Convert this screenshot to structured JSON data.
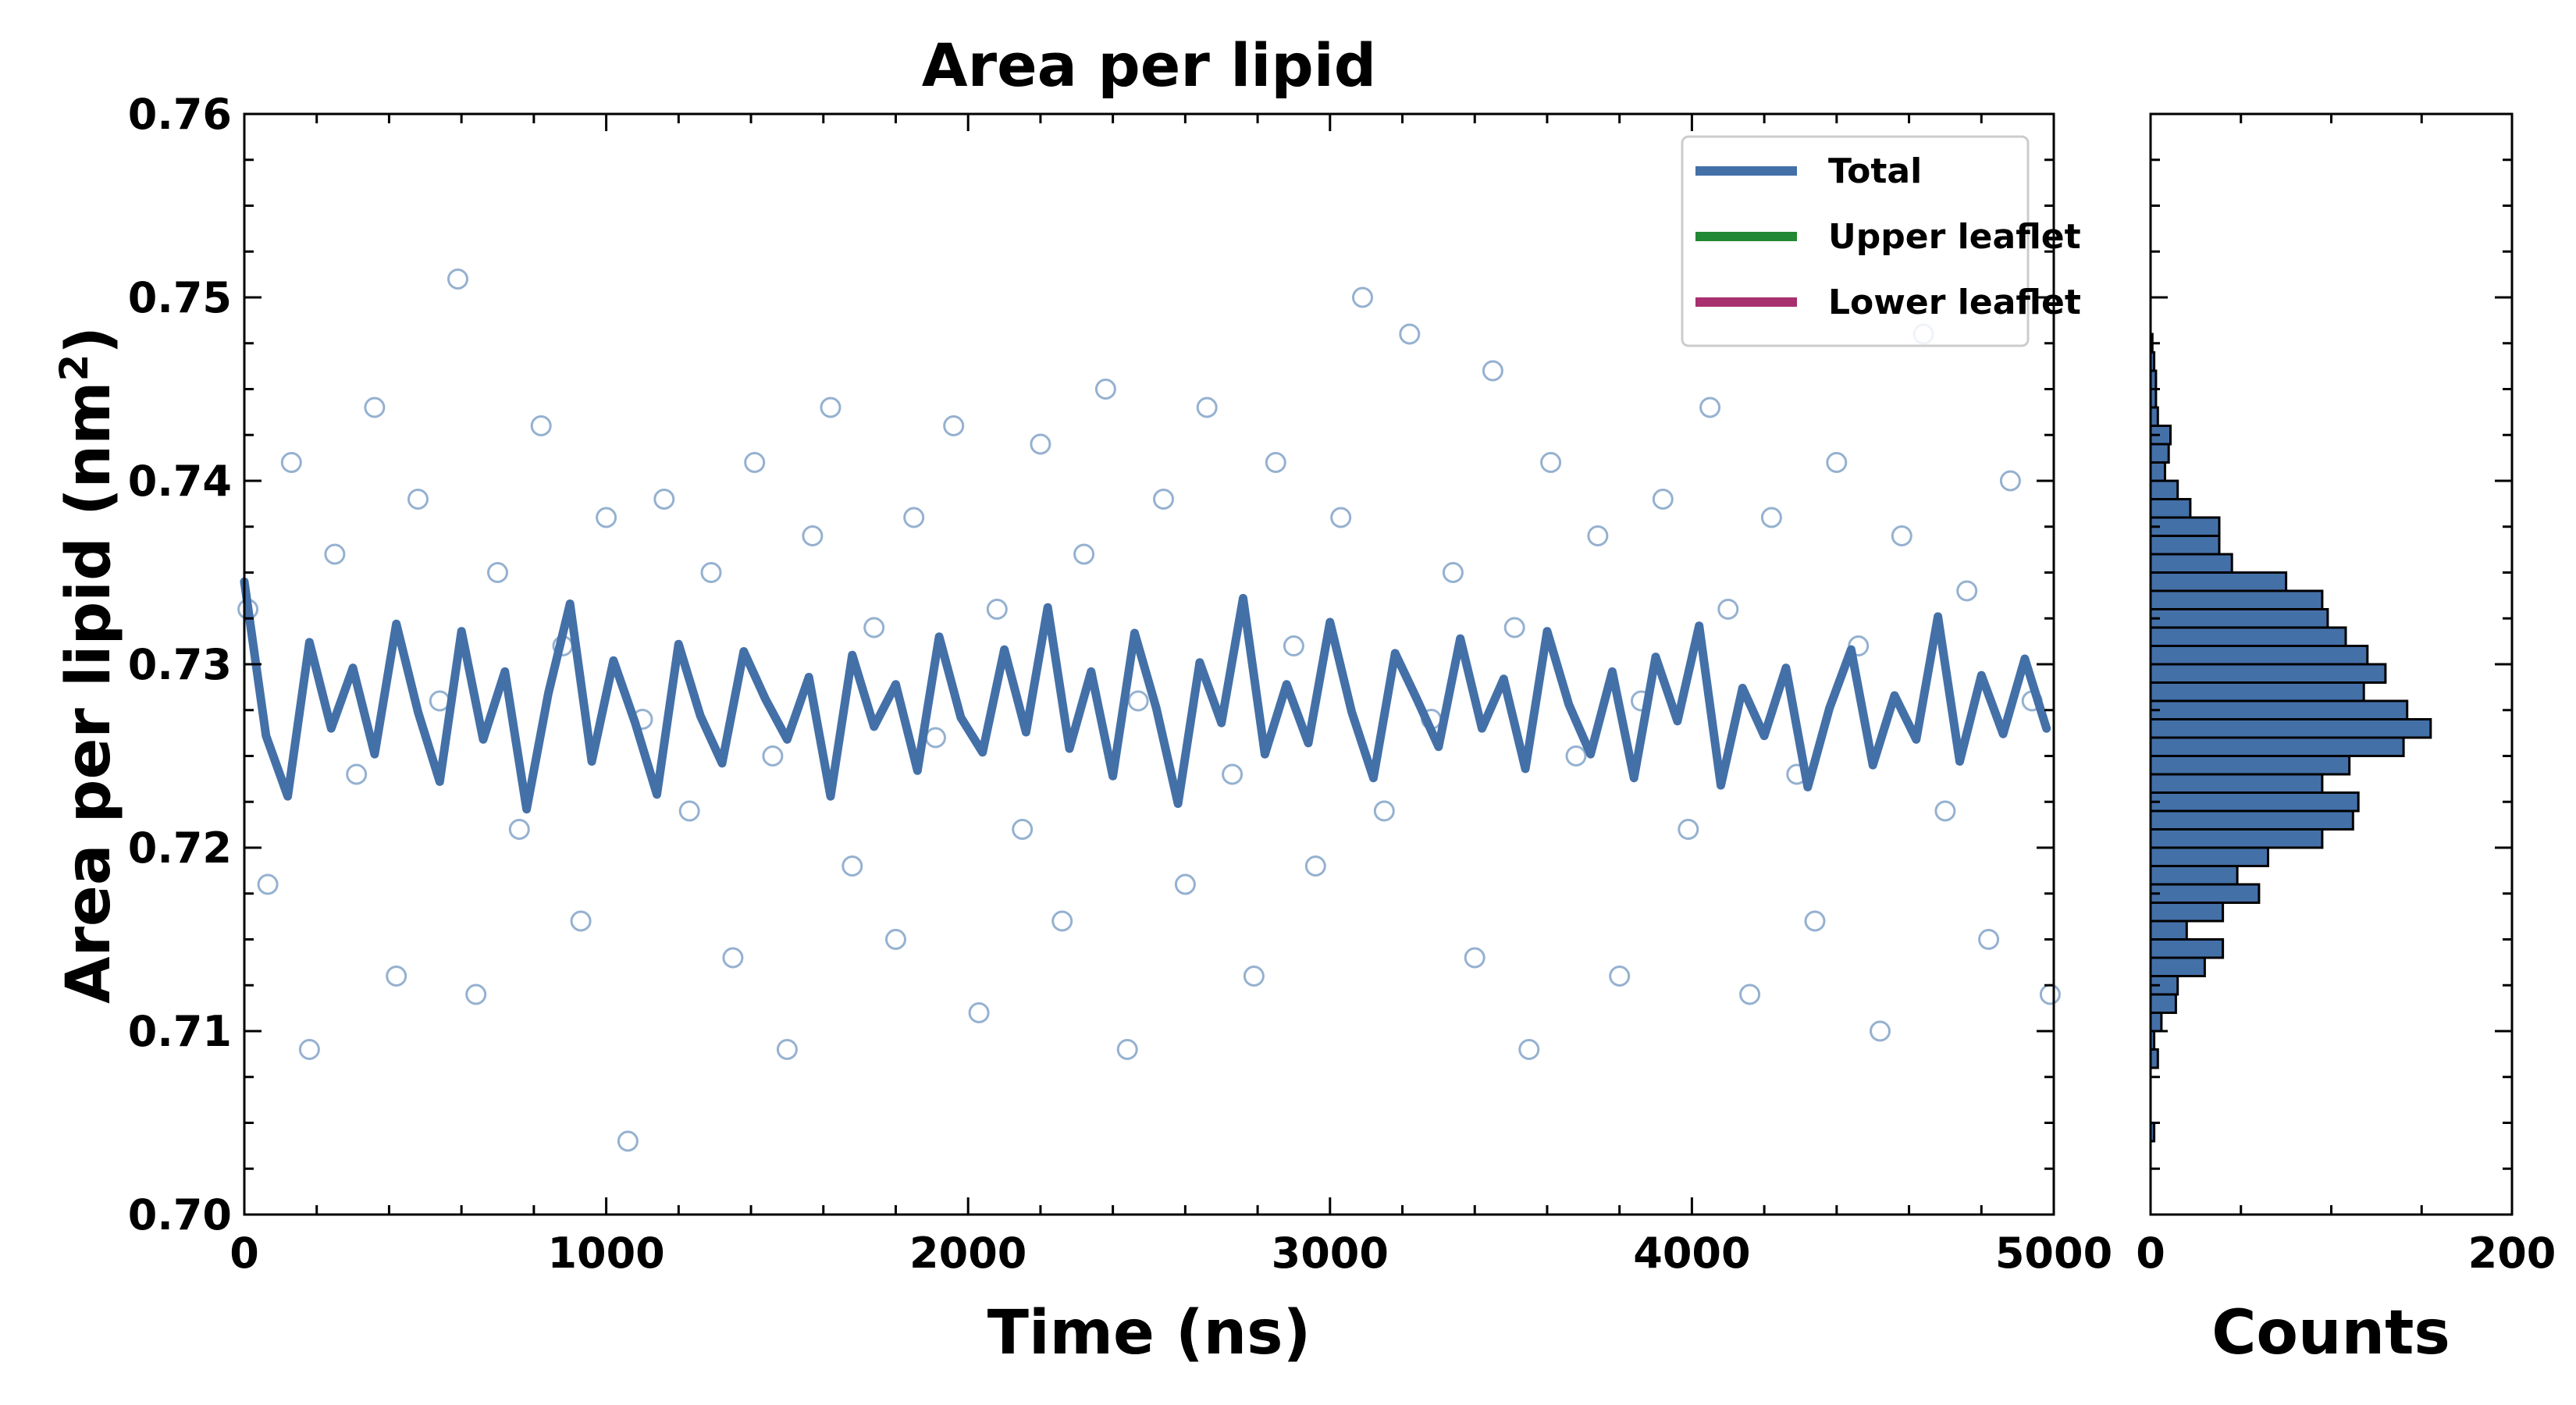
{
  "chart_data": [
    {
      "type": "scatter",
      "title": "Area per lipid",
      "xlabel": "Time (ns)",
      "ylabel_main": "Area per lipid (nm",
      "ylabel_sup": "2",
      "ylabel_close": ")",
      "xlim": [
        0,
        5000
      ],
      "ylim": [
        0.7,
        0.76
      ],
      "xticks": [
        0,
        1000,
        2000,
        3000,
        4000,
        5000
      ],
      "xtick_labels": [
        "0",
        "1000",
        "2000",
        "3000",
        "4000",
        "5000"
      ],
      "yticks": [
        0.7,
        0.71,
        0.72,
        0.73,
        0.74,
        0.75,
        0.76
      ],
      "ytick_labels": [
        "0.70",
        "0.71",
        "0.72",
        "0.73",
        "0.74",
        "0.75",
        "0.76"
      ],
      "grid": false,
      "legend_position": "top-right",
      "legend": [
        {
          "name": "Total",
          "color": "#4470a8"
        },
        {
          "name": "Upper leaflet",
          "color": "#228833"
        },
        {
          "name": "Lower leaflet",
          "color": "#a8306e"
        }
      ],
      "series": [
        {
          "name": "Total",
          "kind": "scatter",
          "color": "#8aa9cb",
          "x": [
            10,
            65,
            130,
            180,
            250,
            310,
            360,
            420,
            480,
            540,
            590,
            640,
            700,
            760,
            820,
            880,
            930,
            1000,
            1060,
            1100,
            1160,
            1230,
            1290,
            1350,
            1410,
            1460,
            1500,
            1570,
            1620,
            1680,
            1740,
            1800,
            1850,
            1910,
            1960,
            2030,
            2080,
            2150,
            2200,
            2260,
            2320,
            2380,
            2440,
            2470,
            2540,
            2600,
            2660,
            2730,
            2790,
            2850,
            2900,
            2960,
            3030,
            3090,
            3150,
            3220,
            3280,
            3340,
            3400,
            3450,
            3510,
            3550,
            3610,
            3680,
            3740,
            3800,
            3860,
            3920,
            3990,
            4050,
            4100,
            4160,
            4220,
            4290,
            4340,
            4400,
            4460,
            4520,
            4580,
            4640,
            4700,
            4760,
            4820,
            4880,
            4940,
            4990
          ],
          "y": [
            0.733,
            0.718,
            0.741,
            0.709,
            0.736,
            0.724,
            0.744,
            0.713,
            0.739,
            0.728,
            0.751,
            0.712,
            0.735,
            0.721,
            0.743,
            0.731,
            0.716,
            0.738,
            0.704,
            0.727,
            0.739,
            0.722,
            0.735,
            0.714,
            0.741,
            0.725,
            0.709,
            0.737,
            0.744,
            0.719,
            0.732,
            0.715,
            0.738,
            0.726,
            0.743,
            0.711,
            0.733,
            0.721,
            0.742,
            0.716,
            0.736,
            0.745,
            0.709,
            0.728,
            0.739,
            0.718,
            0.744,
            0.724,
            0.713,
            0.741,
            0.731,
            0.719,
            0.738,
            0.75,
            0.722,
            0.748,
            0.727,
            0.735,
            0.714,
            0.746,
            0.732,
            0.709,
            0.741,
            0.725,
            0.737,
            0.713,
            0.728,
            0.739,
            0.721,
            0.744,
            0.733,
            0.712,
            0.738,
            0.724,
            0.716,
            0.741,
            0.731,
            0.71,
            0.737,
            0.748,
            0.722,
            0.734,
            0.715,
            0.74,
            0.728,
            0.712
          ]
        },
        {
          "name": "Total",
          "kind": "line",
          "color": "#4470a8",
          "x": [
            0,
            60,
            120,
            180,
            240,
            300,
            360,
            420,
            480,
            540,
            600,
            660,
            720,
            780,
            840,
            900,
            960,
            1020,
            1080,
            1140,
            1200,
            1260,
            1320,
            1380,
            1440,
            1500,
            1560,
            1620,
            1680,
            1740,
            1800,
            1860,
            1920,
            1980,
            2040,
            2100,
            2160,
            2220,
            2280,
            2340,
            2400,
            2460,
            2520,
            2580,
            2640,
            2700,
            2760,
            2820,
            2880,
            2940,
            3000,
            3060,
            3120,
            3180,
            3240,
            3300,
            3360,
            3420,
            3480,
            3540,
            3600,
            3660,
            3720,
            3780,
            3840,
            3900,
            3960,
            4020,
            4080,
            4140,
            4200,
            4260,
            4320,
            4380,
            4440,
            4500,
            4560,
            4620,
            4680,
            4740,
            4800,
            4860,
            4920,
            4980
          ],
          "y": [
            0.7345,
            0.7261,
            0.7228,
            0.7312,
            0.7265,
            0.7298,
            0.7251,
            0.7322,
            0.7274,
            0.7236,
            0.7318,
            0.7259,
            0.7296,
            0.7221,
            0.7284,
            0.7333,
            0.7247,
            0.7302,
            0.7268,
            0.7229,
            0.7311,
            0.7272,
            0.7246,
            0.7307,
            0.7281,
            0.7259,
            0.7293,
            0.7228,
            0.7305,
            0.7266,
            0.7289,
            0.7242,
            0.7315,
            0.7271,
            0.7252,
            0.7308,
            0.7263,
            0.7331,
            0.7254,
            0.7296,
            0.7239,
            0.7317,
            0.7276,
            0.7224,
            0.7301,
            0.7268,
            0.7336,
            0.7251,
            0.7289,
            0.7257,
            0.7323,
            0.7274,
            0.7238,
            0.7306,
            0.7281,
            0.7255,
            0.7314,
            0.7265,
            0.7292,
            0.7243,
            0.7318,
            0.7278,
            0.7251,
            0.7296,
            0.7238,
            0.7304,
            0.7269,
            0.7321,
            0.7234,
            0.7287,
            0.7261,
            0.7298,
            0.7233,
            0.7276,
            0.7308,
            0.7245,
            0.7283,
            0.7259,
            0.7326,
            0.7247,
            0.7294,
            0.7262,
            0.7303,
            0.7265
          ]
        }
      ]
    },
    {
      "type": "bar",
      "orientation": "horizontal",
      "xlabel": "Counts",
      "xlim": [
        0,
        200
      ],
      "xticks": [
        0,
        200
      ],
      "xtick_labels": [
        "0",
        "200"
      ],
      "bar_color": "#4470a8",
      "bin_width": 0.001,
      "bins": [
        0.7045,
        0.7085,
        0.7095,
        0.7105,
        0.7115,
        0.7125,
        0.7135,
        0.7145,
        0.7155,
        0.7165,
        0.7175,
        0.7185,
        0.7195,
        0.7205,
        0.7215,
        0.7225,
        0.7235,
        0.7245,
        0.7255,
        0.7265,
        0.7275,
        0.7285,
        0.7295,
        0.7305,
        0.7315,
        0.7325,
        0.7335,
        0.7345,
        0.7355,
        0.7365,
        0.7375,
        0.7385,
        0.7395,
        0.7405,
        0.7415,
        0.7425,
        0.7435,
        0.7445,
        0.7455,
        0.7465,
        0.7475
      ],
      "values": [
        2,
        4,
        2,
        6,
        14,
        15,
        30,
        40,
        20,
        40,
        60,
        48,
        65,
        95,
        112,
        115,
        95,
        110,
        140,
        155,
        142,
        118,
        130,
        120,
        108,
        98,
        95,
        75,
        45,
        38,
        38,
        22,
        15,
        8,
        10,
        11,
        4,
        3,
        3,
        2,
        1
      ]
    }
  ]
}
